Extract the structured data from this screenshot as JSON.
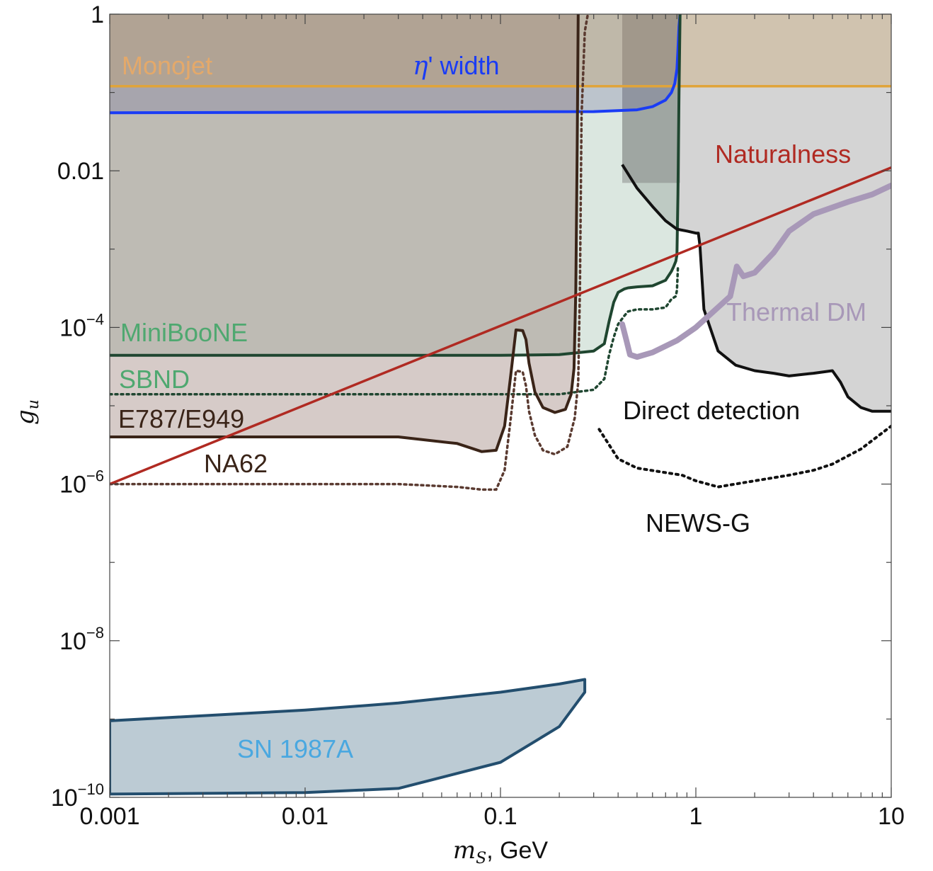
{
  "chart_data": {
    "type": "area",
    "xlabel_italic": "m",
    "xlabel_sub": "S",
    "xlabel_rest": ", GeV",
    "ylabel_italic": "g",
    "ylabel_sub": "u",
    "xscale": "log",
    "yscale": "log",
    "xlim": [
      0.001,
      10
    ],
    "ylim": [
      1e-10,
      1
    ],
    "xticks": [
      {
        "value": 0.001,
        "label": "0.001"
      },
      {
        "value": 0.01,
        "label": "0.01"
      },
      {
        "value": 0.1,
        "label": "0.1"
      },
      {
        "value": 1,
        "label": "1"
      },
      {
        "value": 10,
        "label": "10"
      }
    ],
    "yticks": [
      {
        "value": 1,
        "base": "1",
        "exp": ""
      },
      {
        "value": 0.01,
        "base": "0.01",
        "exp": ""
      },
      {
        "value": 0.0001,
        "base": "10",
        "exp": "−4"
      },
      {
        "value": 1e-06,
        "base": "10",
        "exp": "−6"
      },
      {
        "value": 1e-08,
        "base": "10",
        "exp": "−8"
      },
      {
        "value": 1e-10,
        "base": "10",
        "exp": "−10"
      }
    ],
    "grid": false,
    "colors": {
      "monojet": "#e0a43a",
      "eta": "#1a3cf5",
      "naturalness": "#b02a22",
      "thermal": "#a898b8",
      "miniboone": "#1f4630",
      "e787": "#3a2418",
      "sn": "#234e6e",
      "direct": "#111111"
    },
    "series": [
      {
        "name": "Monojet",
        "style": "line-with-fill-above",
        "x": [
          0.001,
          10
        ],
        "y": [
          0.12,
          0.12
        ]
      },
      {
        "name": "η' width",
        "label_symbol": "η",
        "label_rest": "' width",
        "style": "line-with-fill-above",
        "x": [
          0.001,
          0.3,
          0.5,
          0.6,
          0.7,
          0.75,
          0.78,
          0.8,
          0.81,
          0.82,
          0.83
        ],
        "y": [
          0.055,
          0.057,
          0.06,
          0.066,
          0.08,
          0.1,
          0.13,
          0.2,
          0.35,
          0.7,
          1.0
        ]
      },
      {
        "name": "Naturalness",
        "style": "line",
        "x": [
          0.001,
          10
        ],
        "y": [
          1e-06,
          0.011
        ]
      },
      {
        "name": "Thermal DM",
        "style": "thick-line",
        "x": [
          0.42,
          0.44,
          0.46,
          0.5,
          0.6,
          0.8,
          1.0,
          1.5,
          1.62,
          1.75,
          2.0,
          2.5,
          3.0,
          4.0,
          6.0,
          8.0,
          10.0
        ],
        "y": [
          0.00011,
          7e-05,
          4.5e-05,
          4.2e-05,
          4.8e-05,
          6.8e-05,
          0.0001,
          0.00025,
          0.0006,
          0.00045,
          0.0005,
          0.0009,
          0.0017,
          0.0028,
          0.004,
          0.005,
          0.0065
        ]
      },
      {
        "name": "MiniBooNE",
        "style": "line-with-fill-above",
        "x": [
          0.001,
          0.1,
          0.2,
          0.3,
          0.34,
          0.36,
          0.38,
          0.4,
          0.43,
          0.45,
          0.5,
          0.6,
          0.7,
          0.75,
          0.77,
          0.79,
          0.8,
          0.81,
          0.82,
          0.83
        ],
        "y": [
          4.4e-05,
          4.4e-05,
          4.5e-05,
          5e-05,
          6.2e-05,
          0.00012,
          0.00021,
          0.00028,
          0.00031,
          0.00032,
          0.00033,
          0.00034,
          0.0004,
          0.00052,
          0.0006,
          0.0007,
          0.00085,
          0.005,
          0.1,
          1.0
        ]
      },
      {
        "name": "SBND",
        "style": "dotted-line",
        "x": [
          0.001,
          0.2,
          0.3,
          0.34,
          0.36,
          0.38,
          0.4,
          0.43,
          0.45,
          0.5,
          0.6,
          0.7,
          0.75,
          0.77,
          0.79,
          0.8,
          0.81
        ],
        "y": [
          1.4e-05,
          1.4e-05,
          1.6e-05,
          2.2e-05,
          4.5e-05,
          7.5e-05,
          0.00011,
          0.00014,
          0.00016,
          0.00017,
          0.00017,
          0.00018,
          0.00023,
          0.00024,
          0.00025,
          0.0003,
          0.0006
        ]
      },
      {
        "name": "E787/E949",
        "style": "line-with-fill-above",
        "x": [
          0.001,
          0.03,
          0.06,
          0.08,
          0.095,
          0.105,
          0.113,
          0.12,
          0.13,
          0.135,
          0.14,
          0.15,
          0.165,
          0.19,
          0.215,
          0.23,
          0.238,
          0.243,
          0.247,
          0.25
        ],
        "y": [
          4e-06,
          4e-06,
          3.3e-06,
          2.6e-06,
          2.7e-06,
          5.5e-06,
          2.5e-05,
          9.3e-05,
          9.1e-05,
          7e-05,
          3.5e-05,
          1.5e-05,
          9.5e-06,
          8.2e-06,
          9e-06,
          1.4e-05,
          3e-05,
          0.0003,
          0.02,
          1.0
        ]
      },
      {
        "name": "NA62",
        "style": "dotted-line",
        "x": [
          0.001,
          0.03,
          0.06,
          0.08,
          0.095,
          0.105,
          0.113,
          0.12,
          0.13,
          0.135,
          0.14,
          0.15,
          0.165,
          0.19,
          0.22,
          0.24,
          0.25,
          0.255,
          0.26,
          0.27,
          0.28
        ],
        "y": [
          1e-06,
          1e-06,
          9.2e-07,
          8.5e-07,
          8.5e-07,
          1.5e-06,
          7e-06,
          2.8e-05,
          2.7e-05,
          1.8e-05,
          8.5e-06,
          4.2e-06,
          2.7e-06,
          2.4e-06,
          3e-06,
          7e-06,
          2e-05,
          0.0003,
          0.05,
          0.6,
          1.0
        ]
      },
      {
        "name": "Direct detection",
        "style": "line-with-fill-above",
        "x": [
          0.42,
          0.5,
          0.6,
          0.7,
          0.8,
          0.9,
          1.0,
          1.03,
          1.05,
          1.1,
          1.3,
          1.6,
          2.0,
          2.5,
          3.0,
          4.0,
          5.0,
          5.5,
          6.0,
          7.0,
          8.0,
          10.0
        ],
        "y": [
          0.012,
          0.006,
          0.0035,
          0.0023,
          0.0018,
          0.0017,
          0.0016,
          0.0016,
          0.0011,
          0.00017,
          5e-05,
          3.3e-05,
          2.8e-05,
          2.6e-05,
          2.4e-05,
          2.6e-05,
          2.8e-05,
          2e-05,
          1.3e-05,
          9.5e-06,
          8.5e-06,
          8.5e-06
        ]
      },
      {
        "name": "NEWS-G",
        "style": "dotted-line",
        "x": [
          0.32,
          0.4,
          0.5,
          0.7,
          0.85,
          1.0,
          1.3,
          2.0,
          3.0,
          4.0,
          5.0,
          7.0,
          10.0
        ],
        "y": [
          5e-06,
          2.1e-06,
          1.6e-06,
          1.4e-06,
          1.3e-06,
          1.1e-06,
          9.2e-07,
          1.1e-06,
          1.3e-06,
          1.5e-06,
          1.8e-06,
          2.8e-06,
          5.5e-06
        ]
      },
      {
        "name": "SN 1987A",
        "style": "closed-polygon",
        "x": [
          0.001,
          0.01,
          0.03,
          0.1,
          0.2,
          0.25,
          0.27,
          0.27,
          0.25,
          0.2,
          0.1,
          0.03,
          0.01,
          0.001
        ],
        "y": [
          1.1e-10,
          1.15e-10,
          1.3e-10,
          2.8e-10,
          8e-10,
          1.7e-09,
          2.2e-09,
          3.2e-09,
          3.1e-09,
          2.8e-09,
          2.2e-09,
          1.6e-09,
          1.3e-09,
          9.5e-10
        ]
      }
    ],
    "band": {
      "x": [
        0.42,
        0.83
      ],
      "y": [
        0.007,
        1.0
      ]
    },
    "labels": {
      "monojet": "Monojet",
      "naturalness": "Naturalness",
      "thermal": "Thermal DM",
      "miniboone": "MiniBooNE",
      "sbnd": "SBND",
      "e787": "E787/E949",
      "na62": "NA62",
      "direct": "Direct detection",
      "newsg": "NEWS-G",
      "sn": "SN 1987A"
    }
  }
}
